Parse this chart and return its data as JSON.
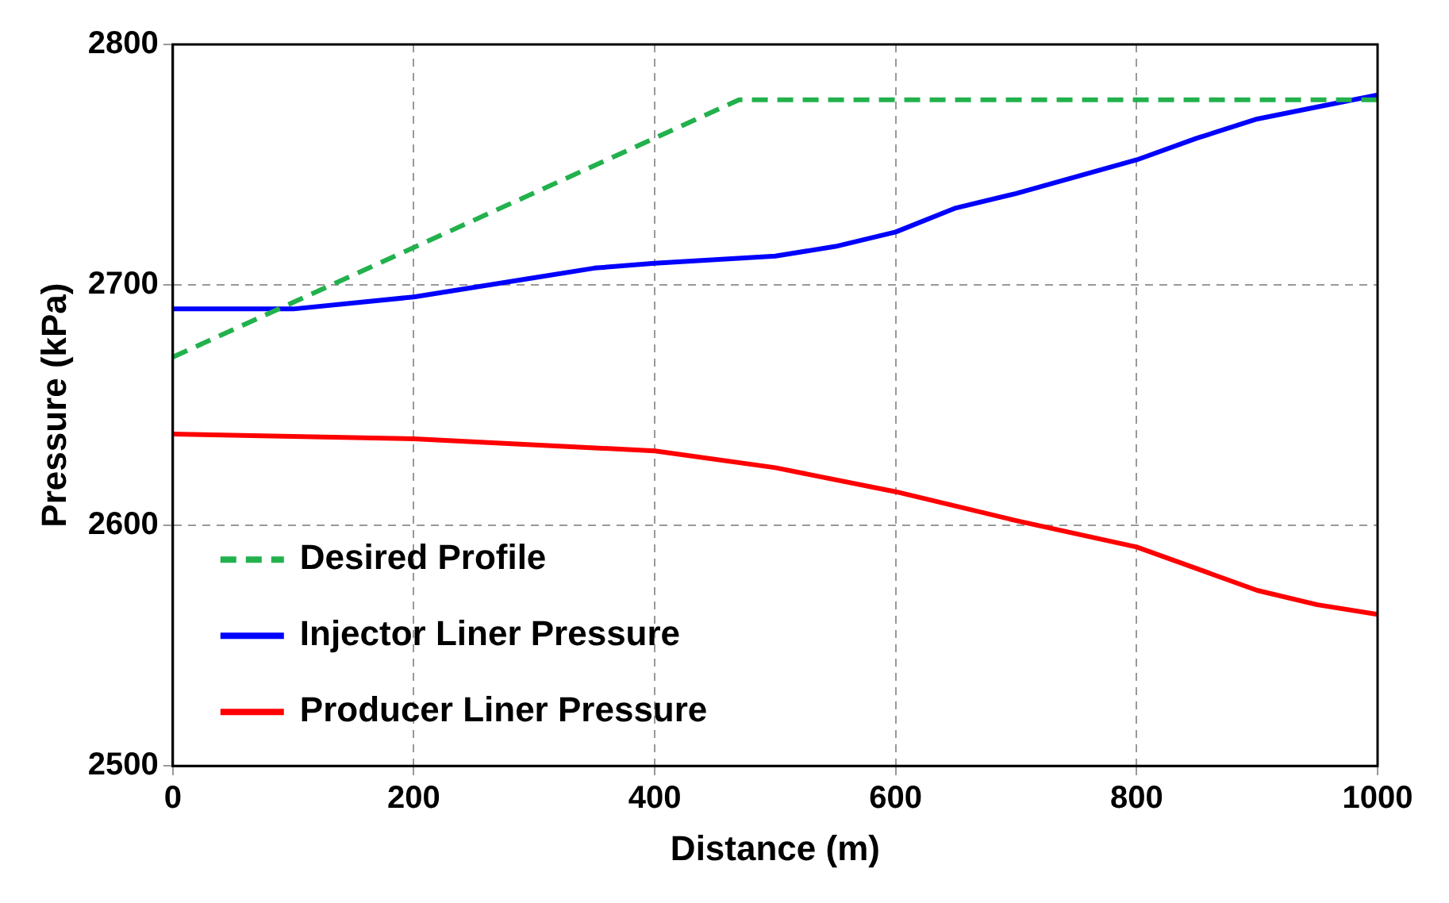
{
  "chart_data": {
    "type": "line",
    "xlabel": "Distance (m)",
    "ylabel": "Pressure (kPa)",
    "xlim": [
      0,
      1000
    ],
    "xticks": [
      0,
      200,
      400,
      600,
      800,
      1000
    ],
    "ylim": [
      2500,
      2800
    ],
    "yticks": [
      2500,
      2600,
      2700,
      2800
    ],
    "grid": true,
    "legend": "bottom left",
    "marker": "none",
    "series": [
      {
        "name": "Desired Profile",
        "color": "#22b14c",
        "line_style": "dashed",
        "x": [
          0,
          470,
          1000
        ],
        "values": [
          2670,
          2777,
          2777
        ]
      },
      {
        "name": "Injector Liner Pressure",
        "color": "#0000ff",
        "line_style": "solid",
        "x": [
          0,
          100,
          200,
          300,
          350,
          400,
          500,
          550,
          600,
          650,
          700,
          750,
          800,
          850,
          900,
          950,
          1000
        ],
        "values": [
          2690,
          2690,
          2695,
          2703,
          2707,
          2709,
          2712,
          2716,
          2722,
          2732,
          2738,
          2745,
          2752,
          2761,
          2769,
          2774,
          2779
        ]
      },
      {
        "name": "Producer Liner Pressure",
        "color": "#ff0000",
        "line_style": "solid",
        "x": [
          0,
          200,
          400,
          500,
          600,
          700,
          800,
          850,
          900,
          950,
          1000
        ],
        "values": [
          2638,
          2636,
          2631,
          2624,
          2614,
          2602,
          2591,
          2582,
          2573,
          2567,
          2563
        ]
      }
    ]
  }
}
